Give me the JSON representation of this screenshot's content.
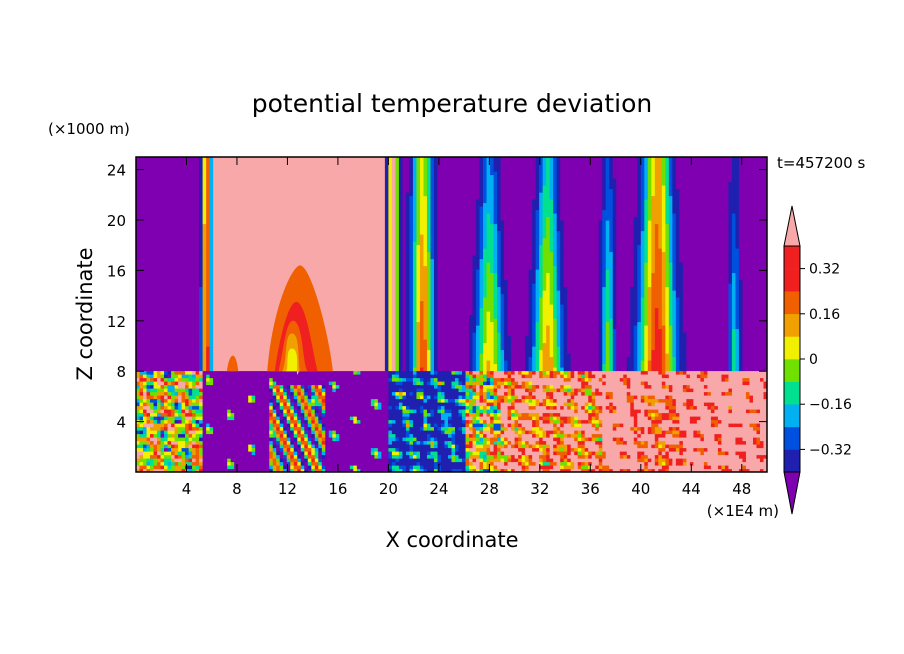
{
  "chart_data": {
    "type": "heatmap",
    "title": "potential temperature deviation",
    "xlabel": "X coordinate",
    "ylabel": "Z coordinate",
    "x_unit": "(×1E4 m)",
    "y_unit": "(×1000 m)",
    "time_label": "t=457200 s",
    "xlim": [
      0,
      50
    ],
    "ylim": [
      0,
      25
    ],
    "x_ticks": [
      4,
      8,
      12,
      16,
      20,
      24,
      28,
      32,
      36,
      40,
      44,
      48
    ],
    "y_ticks": [
      4,
      8,
      12,
      16,
      20,
      24
    ],
    "x_tick_labels": [
      "4",
      "8",
      "12",
      "16",
      "20",
      "24",
      "28",
      "32",
      "36",
      "40",
      "44",
      "48"
    ],
    "y_tick_labels": [
      "4",
      "8",
      "12",
      "16",
      "20",
      "24"
    ],
    "colorbar": {
      "levels": [
        -0.4,
        -0.32,
        -0.24,
        -0.16,
        -0.08,
        0,
        0.08,
        0.16,
        0.24,
        0.32,
        0.4
      ],
      "tick_values": [
        -0.32,
        -0.16,
        0,
        0.16,
        0.32
      ],
      "tick_labels": [
        "−0.32",
        "−0.16",
        "0",
        "0.16",
        "0.32"
      ],
      "colors": [
        "#7f00b0",
        "#2020b0",
        "#0050e0",
        "#00b0f0",
        "#00e090",
        "#70e000",
        "#f0f000",
        "#f0a000",
        "#f06000",
        "#f02020",
        "#f8a8a8"
      ]
    },
    "field_description": "upper layer (z>8): alternating vertical bands; x 6-19.5 strong positive (>0.4) with embedded plume near x=12, z up to 16; lower layer (z<8): turbulent mixing, x 0-5 mixed, x 5-20 negative, x 26-50 mostly positive"
  }
}
